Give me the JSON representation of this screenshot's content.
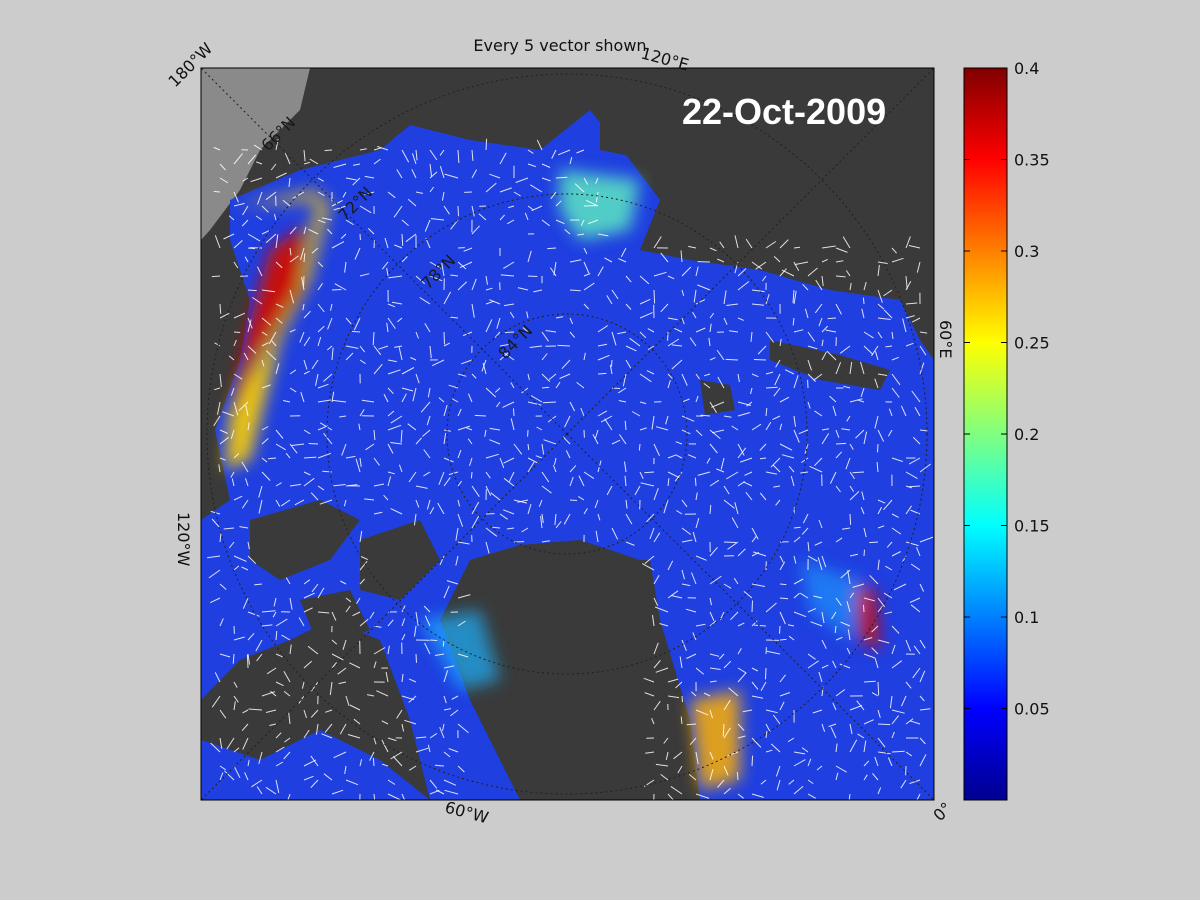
{
  "figure": {
    "title": "Every 5 vector shown",
    "date_label": "22-Oct-2009"
  },
  "map": {
    "projection": "north polar stereographic",
    "colors": {
      "land": "#3a3a3a",
      "background_land": "#8a8a8a",
      "vector": "#ffffff"
    },
    "longitude_labels": [
      "180°W",
      "120°E",
      "60°E",
      "120°W",
      "60°W",
      "0°"
    ],
    "latitude_labels": [
      "66°N",
      "72°N",
      "78°N",
      "84°N"
    ]
  },
  "colorbar": {
    "colormap": "jet",
    "min": 0,
    "max": 0.4,
    "ticks": [
      "0.4",
      "0.35",
      "0.3",
      "0.25",
      "0.2",
      "0.15",
      "0.1",
      "0.05"
    ]
  }
}
